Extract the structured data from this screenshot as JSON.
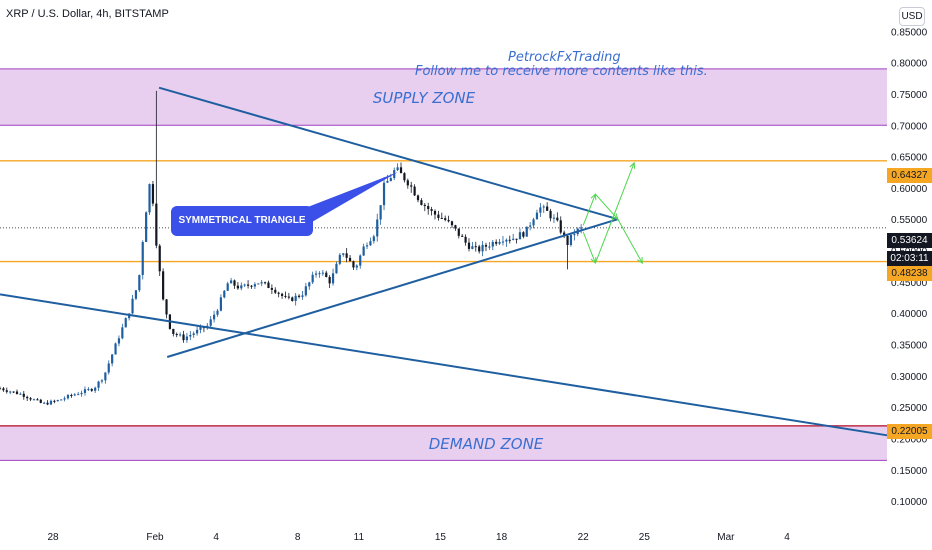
{
  "header": {
    "symbol_title": "XRP / U.S. Dollar, 4h, BITSTAMP",
    "currency_badge": "USD"
  },
  "annotations": {
    "author_name": "PetrockFxTrading",
    "author_cta": "Follow me to receive more contents like this.",
    "supply_zone_label": "SUPPLY ZONE",
    "demand_zone_label": "DEMAND ZONE",
    "triangle_label": "SYMMETRICAL TRIANGLE"
  },
  "price_tags": {
    "upper_level": "0.64327",
    "last_price": "0.53624",
    "countdown": "02:03:11",
    "lower_level": "0.48238",
    "demand_level": "0.22005"
  },
  "colors": {
    "zone_fill": "#e8cff0",
    "zone_border": "#a040c0",
    "level_line": "#f5a623",
    "trendline": "#1f5fa0",
    "up_candle": "#1f5fa0",
    "down_candle": "#131722",
    "arrow": "#4cd64c",
    "demand_line": "#c0304a"
  },
  "chart_data": {
    "type": "candlestick",
    "y_axis": {
      "range": [
        0.065,
        0.9
      ],
      "ticks": [
        "0.10000",
        "0.15000",
        "0.20000",
        "0.25000",
        "0.30000",
        "0.35000",
        "0.40000",
        "0.45000",
        "0.50000",
        "0.55000",
        "0.60000",
        "0.65000",
        "0.70000",
        "0.75000",
        "0.80000",
        "0.85000"
      ]
    },
    "x_axis": {
      "ticks": [
        {
          "label": "28",
          "day": -4
        },
        {
          "label": "Feb",
          "day": 1
        },
        {
          "label": "4",
          "day": 4
        },
        {
          "label": "8",
          "day": 8
        },
        {
          "label": "11",
          "day": 11
        },
        {
          "label": "15",
          "day": 15
        },
        {
          "label": "18",
          "day": 18
        },
        {
          "label": "22",
          "day": 22
        },
        {
          "label": "25",
          "day": 25
        },
        {
          "label": "Mar",
          "day": 29
        },
        {
          "label": "4",
          "day": 32
        }
      ],
      "day_range": [
        -6.6,
        36.9
      ]
    },
    "zones": [
      {
        "name": "supply",
        "from": 0.7,
        "to": 0.79
      },
      {
        "name": "demand",
        "from": 0.165,
        "to": 0.22
      }
    ],
    "levels": [
      0.64327,
      0.48238,
      0.22005
    ],
    "last_price": 0.53624,
    "trendlines": [
      {
        "name": "triangle-upper",
        "from": {
          "day": 1.2,
          "price": 0.76
        },
        "to": {
          "day": 23.7,
          "price": 0.55
        }
      },
      {
        "name": "triangle-lower",
        "from": {
          "day": 1.6,
          "price": 0.33
        },
        "to": {
          "day": 23.7,
          "price": 0.55
        }
      },
      {
        "name": "long-support",
        "from": {
          "day": -6.6,
          "price": 0.43
        },
        "to": {
          "day": 36.9,
          "price": 0.205
        }
      }
    ],
    "projection_arrows": [
      {
        "from": {
          "day": 22.0,
          "price": 0.54
        },
        "to": {
          "day": 22.6,
          "price": 0.59
        }
      },
      {
        "from": {
          "day": 22.6,
          "price": 0.59
        },
        "to": {
          "day": 23.7,
          "price": 0.55
        }
      },
      {
        "from": {
          "day": 23.7,
          "price": 0.55
        },
        "to": {
          "day": 24.9,
          "price": 0.48
        }
      },
      {
        "from": {
          "day": 22.0,
          "price": 0.53
        },
        "to": {
          "day": 22.6,
          "price": 0.48
        }
      },
      {
        "from": {
          "day": 22.6,
          "price": 0.48
        },
        "to": {
          "day": 24.5,
          "price": 0.64
        }
      }
    ],
    "price_path": [
      [
        -6.6,
        0.28
      ],
      [
        -5.5,
        0.27
      ],
      [
        -4.5,
        0.255
      ],
      [
        -3.8,
        0.26
      ],
      [
        -3.0,
        0.27
      ],
      [
        -2.0,
        0.28
      ],
      [
        -1.5,
        0.3
      ],
      [
        -0.8,
        0.36
      ],
      [
        -0.3,
        0.4
      ],
      [
        0.2,
        0.45
      ],
      [
        0.5,
        0.55
      ],
      [
        0.8,
        0.62
      ],
      [
        1.1,
        0.5
      ],
      [
        1.4,
        0.42
      ],
      [
        1.8,
        0.37
      ],
      [
        2.4,
        0.36
      ],
      [
        3.0,
        0.37
      ],
      [
        3.6,
        0.38
      ],
      [
        4.1,
        0.41
      ],
      [
        4.6,
        0.45
      ],
      [
        5.2,
        0.44
      ],
      [
        6.0,
        0.45
      ],
      [
        6.8,
        0.44
      ],
      [
        7.5,
        0.42
      ],
      [
        8.2,
        0.43
      ],
      [
        9.0,
        0.47
      ],
      [
        9.6,
        0.45
      ],
      [
        10.2,
        0.5
      ],
      [
        10.8,
        0.47
      ],
      [
        11.3,
        0.51
      ],
      [
        11.8,
        0.53
      ],
      [
        12.2,
        0.6
      ],
      [
        12.8,
        0.63
      ],
      [
        13.4,
        0.61
      ],
      [
        14.0,
        0.58
      ],
      [
        14.6,
        0.56
      ],
      [
        15.2,
        0.55
      ],
      [
        15.8,
        0.53
      ],
      [
        16.3,
        0.51
      ],
      [
        16.8,
        0.5
      ],
      [
        17.4,
        0.51
      ],
      [
        18.0,
        0.52
      ],
      [
        18.6,
        0.52
      ],
      [
        19.2,
        0.53
      ],
      [
        19.8,
        0.57
      ],
      [
        20.3,
        0.56
      ],
      [
        20.8,
        0.54
      ],
      [
        21.2,
        0.51
      ],
      [
        21.6,
        0.53
      ],
      [
        22.0,
        0.536
      ]
    ]
  }
}
